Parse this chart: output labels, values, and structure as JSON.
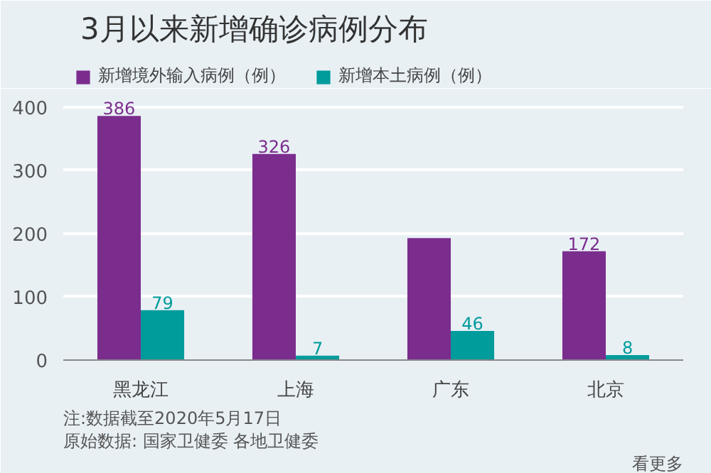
{
  "chart_data": {
    "type": "bar",
    "title": "3月以来新增确诊病例分布",
    "categories": [
      "黑龙江",
      "上海",
      "广东",
      "北京"
    ],
    "series": [
      {
        "name": "新增境外输入病例（例）",
        "color": "#7b2d8e",
        "values": [
          386,
          326,
          193,
          172
        ],
        "value_labels": [
          "386",
          "326",
          null,
          "172"
        ]
      },
      {
        "name": "新增本土病例（例）",
        "color": "#009b9b",
        "values": [
          79,
          7,
          46,
          8
        ],
        "value_labels": [
          "79",
          "7",
          "46",
          "8"
        ]
      }
    ],
    "ylim": [
      0,
      420
    ],
    "yticks": [
      0,
      100,
      200,
      300,
      400
    ],
    "grid": "y",
    "legend": "top left",
    "annotations": [
      "注:数据截至2020年5月17日",
      "原始数据: 国家卫健委 各地卫健委",
      "看更多"
    ]
  }
}
